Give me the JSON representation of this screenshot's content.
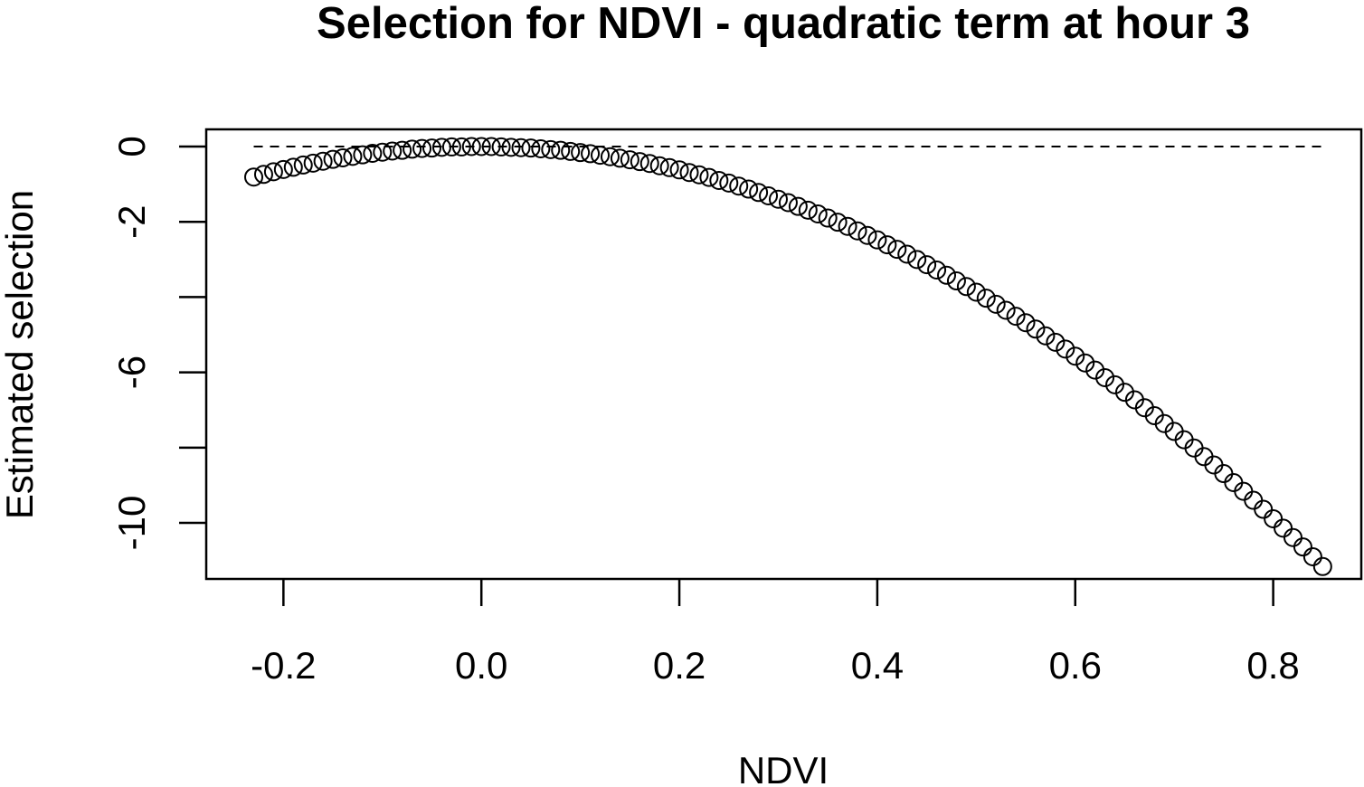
{
  "chart_data": {
    "type": "scatter",
    "title": "Selection for NDVI - quadratic term at hour 3",
    "x_label": "NDVI",
    "y_label": "Estimated selection",
    "x": [
      -0.23,
      -0.22,
      -0.21,
      -0.2,
      -0.19,
      -0.18,
      -0.17,
      -0.16,
      -0.15,
      -0.14,
      -0.13,
      -0.12,
      -0.11,
      -0.1,
      -0.09,
      -0.08,
      -0.07,
      -0.06,
      -0.05,
      -0.04,
      -0.03,
      -0.02,
      -0.01,
      0,
      0.01,
      0.02,
      0.03,
      0.04,
      0.05,
      0.06,
      0.07,
      0.08,
      0.09,
      0.1,
      0.11,
      0.12,
      0.13,
      0.14,
      0.15,
      0.16,
      0.17,
      0.18,
      0.19,
      0.2,
      0.21,
      0.22,
      0.23,
      0.24,
      0.25,
      0.26,
      0.27,
      0.28,
      0.29,
      0.3,
      0.31,
      0.32,
      0.33,
      0.34,
      0.35,
      0.36,
      0.37,
      0.38,
      0.39,
      0.4,
      0.41,
      0.42,
      0.43,
      0.44,
      0.45,
      0.46,
      0.47,
      0.48,
      0.49,
      0.5,
      0.51,
      0.52,
      0.53,
      0.54,
      0.55,
      0.56,
      0.57,
      0.58,
      0.59,
      0.6,
      0.61,
      0.62,
      0.63,
      0.64,
      0.65,
      0.66,
      0.67,
      0.68,
      0.69,
      0.7,
      0.71,
      0.72,
      0.73,
      0.74,
      0.75,
      0.76,
      0.77,
      0.78,
      0.79,
      0.8,
      0.81,
      0.82,
      0.83,
      0.84,
      0.85
    ],
    "values": [
      -0.81,
      -0.74,
      -0.67,
      -0.61,
      -0.55,
      -0.49,
      -0.44,
      -0.39,
      -0.34,
      -0.3,
      -0.26,
      -0.22,
      -0.18,
      -0.15,
      -0.12,
      -0.1,
      -0.07,
      -0.05,
      -0.04,
      -0.02,
      -0.01,
      -0.01,
      0,
      0,
      0,
      -0.01,
      -0.02,
      -0.03,
      -0.04,
      -0.06,
      -0.08,
      -0.1,
      -0.13,
      -0.16,
      -0.19,
      -0.23,
      -0.27,
      -0.31,
      -0.35,
      -0.4,
      -0.45,
      -0.51,
      -0.56,
      -0.62,
      -0.69,
      -0.75,
      -0.82,
      -0.9,
      -0.97,
      -1.05,
      -1.13,
      -1.22,
      -1.31,
      -1.4,
      -1.49,
      -1.59,
      -1.69,
      -1.79,
      -1.9,
      -2.01,
      -2.12,
      -2.24,
      -2.36,
      -2.48,
      -2.61,
      -2.73,
      -2.86,
      -3,
      -3.14,
      -3.28,
      -3.42,
      -3.57,
      -3.72,
      -3.87,
      -4.03,
      -4.19,
      -4.35,
      -4.51,
      -4.68,
      -4.85,
      -5.03,
      -5.2,
      -5.38,
      -5.57,
      -5.75,
      -5.94,
      -6.14,
      -6.33,
      -6.53,
      -6.73,
      -6.94,
      -7.15,
      -7.36,
      -7.57,
      -7.79,
      -8.01,
      -8.24,
      -8.46,
      -8.69,
      -8.93,
      -9.16,
      -9.4,
      -9.64,
      -9.89,
      -10.14,
      -10.39,
      -10.64,
      -10.9,
      -11.16
    ],
    "color": "#000000",
    "marker": "open-circle",
    "reference_line": {
      "y": 0,
      "style": "dashed"
    },
    "xlim": [
      -0.278,
      0.889
    ],
    "ylim": [
      -11.49,
      0.457
    ],
    "xticks": [
      {
        "value": -0.2,
        "label": "-0.2"
      },
      {
        "value": 0,
        "label": "0.0"
      },
      {
        "value": 0.2,
        "label": "0.2"
      },
      {
        "value": 0.4,
        "label": "0.4"
      },
      {
        "value": 0.6,
        "label": "0.6"
      },
      {
        "value": 0.8,
        "label": "0.8"
      }
    ],
    "yticks": [
      0,
      -2,
      {
        "value": -4,
        "label": null
      },
      -6,
      {
        "value": -8,
        "label": null
      },
      -10
    ]
  }
}
